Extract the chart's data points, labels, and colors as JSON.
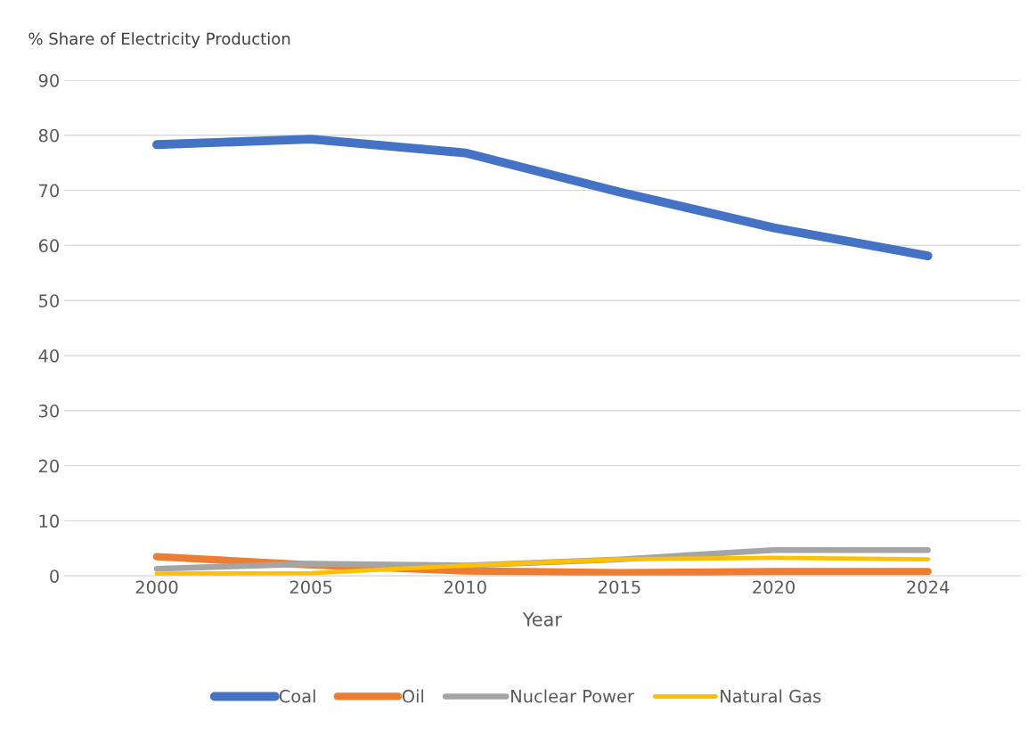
{
  "chart_data": {
    "type": "line",
    "ylabel": "% Share of Electricity Production",
    "xlabel": "Year",
    "categories": [
      "2000",
      "2005",
      "2010",
      "2015",
      "2020",
      "2024"
    ],
    "series": [
      {
        "name": "Coal",
        "color": "#4472c4",
        "values": [
          78.3,
          79.3,
          76.8,
          69.7,
          63.2,
          58.1
        ]
      },
      {
        "name": "Oil",
        "color": "#ed7d31",
        "values": [
          3.5,
          2.0,
          0.9,
          0.6,
          0.8,
          0.8
        ]
      },
      {
        "name": "Nuclear Power",
        "color": "#a5a5a5",
        "values": [
          1.3,
          2.2,
          1.9,
          3.0,
          4.7,
          4.7
        ]
      },
      {
        "name": "Natural Gas",
        "color": "#ffc000",
        "values": [
          0.4,
          0.5,
          1.9,
          3.0,
          3.3,
          3.0
        ]
      }
    ],
    "ylim": [
      0,
      90
    ],
    "yticks": [
      0,
      10,
      20,
      30,
      40,
      50,
      60,
      70,
      80,
      90
    ],
    "grid": "y",
    "legend": "bottom",
    "marker": "none",
    "line_style": "solid"
  }
}
